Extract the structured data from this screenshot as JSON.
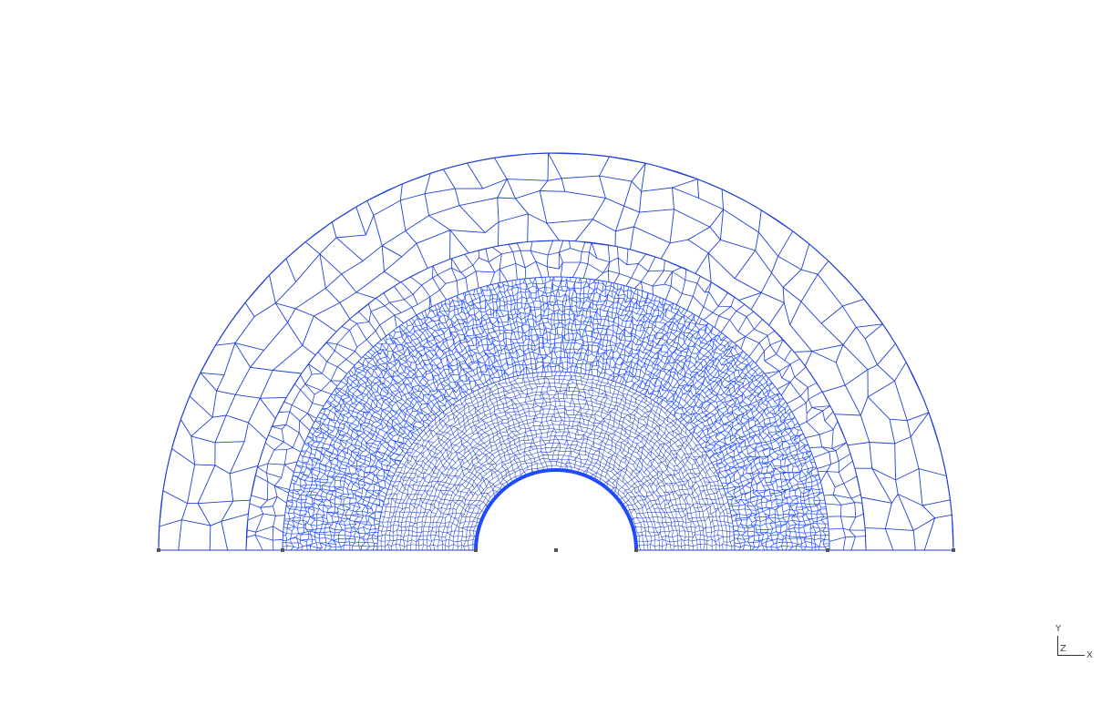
{
  "viewport": {
    "background": "#ffffff",
    "mesh_color": "#1f3fd6",
    "mesh_dense_color": "#1f4bff",
    "vertex_marker_color": "#555555"
  },
  "triad": {
    "y_label": "Y",
    "z_label": "Z",
    "x_label": "X"
  }
}
